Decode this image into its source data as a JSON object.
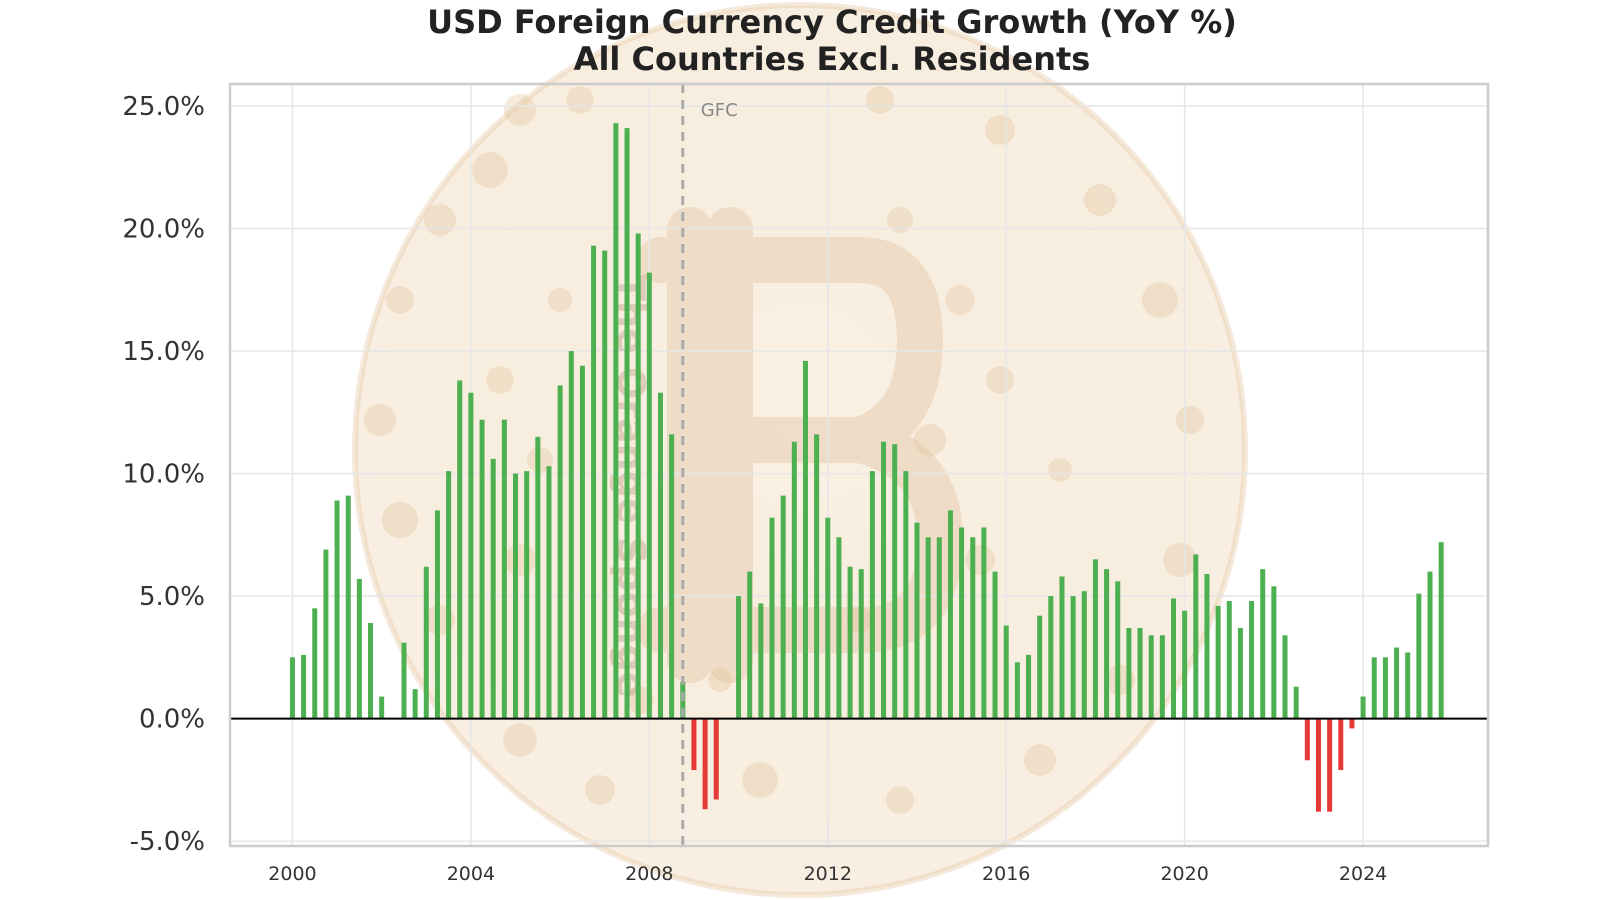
{
  "title_line1": "USD Foreign Currency Credit Growth (YoY %)",
  "title_line2": "All Countries Excl. Residents",
  "watermark": "The Orange Sponge",
  "colors": {
    "positive": "#4caf50",
    "negative": "#e53935",
    "zero_line": "#000000",
    "annotation_line": "#aaaaaa",
    "grid": "#e6e6e6",
    "frame": "#cccccc"
  },
  "chart_data": {
    "type": "bar",
    "title": "USD Foreign Currency Credit Growth (YoY %)",
    "subtitle": "All Countries Excl. Residents",
    "xlabel": "",
    "ylabel": "",
    "xlim": [
      1998.6,
      2026.8
    ],
    "ylim": [
      -5.2,
      25.9
    ],
    "grid": true,
    "legend": "none",
    "x_ticks": [
      2000,
      2004,
      2008,
      2012,
      2016,
      2020,
      2024
    ],
    "x_tick_labels": [
      "2000",
      "2004",
      "2008",
      "2012",
      "2016",
      "2020",
      "2024"
    ],
    "y_ticks": [
      -5,
      0,
      5,
      10,
      15,
      20,
      25
    ],
    "y_tick_labels": [
      "-5.0%",
      "0.0%",
      "5.0%",
      "10.0%",
      "15.0%",
      "20.0%",
      "25.0%"
    ],
    "annotations": [
      {
        "type": "vline",
        "x": 2008.75,
        "label": "GFC"
      }
    ],
    "x_start": 2000.0,
    "x_step": 0.25,
    "values": [
      2.5,
      2.6,
      4.5,
      6.9,
      8.9,
      9.1,
      5.7,
      3.9,
      0.9,
      null,
      3.1,
      1.2,
      6.2,
      8.5,
      10.1,
      13.8,
      13.3,
      12.2,
      10.6,
      12.2,
      10.0,
      10.1,
      11.5,
      10.3,
      13.6,
      15.0,
      14.4,
      19.3,
      19.1,
      24.3,
      24.1,
      19.8,
      18.2,
      13.3,
      11.6,
      1.5,
      -2.1,
      -3.7,
      -3.3,
      null,
      5.0,
      6.0,
      4.7,
      8.2,
      9.1,
      11.3,
      14.6,
      11.6,
      8.2,
      7.4,
      6.2,
      6.1,
      10.1,
      11.3,
      11.2,
      10.1,
      8.0,
      7.4,
      7.4,
      8.5,
      7.8,
      7.4,
      7.8,
      6.0,
      3.8,
      2.3,
      2.6,
      4.2,
      5.0,
      5.8,
      5.0,
      5.2,
      6.5,
      6.1,
      5.6,
      3.7,
      3.7,
      3.4,
      3.4,
      4.9,
      4.4,
      6.7,
      5.9,
      4.6,
      4.8,
      3.7,
      4.8,
      6.1,
      5.4,
      3.4,
      1.3,
      -1.7,
      -3.8,
      -3.8,
      -2.1,
      -0.4,
      0.9,
      2.5,
      2.5,
      2.9,
      2.7,
      5.1,
      6.0,
      7.2
    ]
  }
}
